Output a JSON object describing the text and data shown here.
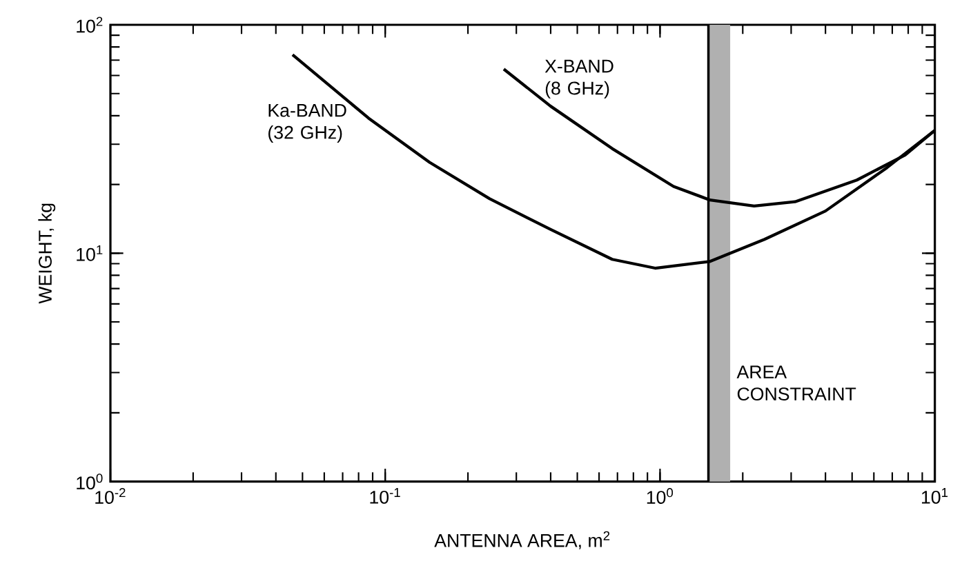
{
  "chart_data": {
    "type": "line",
    "xlabel": "ANTENNA AREA, m$^{2}$",
    "ylabel": "WEIGHT, kg",
    "log": "xy",
    "grid": false,
    "marker": "none",
    "line_style": "solid",
    "xlim": [
      0.01,
      10
    ],
    "ylim": [
      1,
      100
    ],
    "xticks": [
      {
        "value": 0.01,
        "label": "10$^{-2}$"
      },
      {
        "value": 0.1,
        "label": "10$^{-1}$"
      },
      {
        "value": 1,
        "label": "10$^{0}$"
      },
      {
        "value": 10,
        "label": "10$^{1}$"
      }
    ],
    "yticks": [
      {
        "value": 1,
        "label": "10$^{0}$"
      },
      {
        "value": 10,
        "label": "10$^{1}$"
      },
      {
        "value": 100,
        "label": "10$^{2}$"
      }
    ],
    "series": [
      {
        "name": "Ka-BAND (32 GHz)",
        "color": "#000000",
        "x": [
          0.046,
          0.087,
          0.145,
          0.24,
          0.4,
          0.67,
          0.96,
          1.52,
          2.4,
          4.0,
          6.7,
          10
        ],
        "values": [
          74,
          39,
          25,
          17.3,
          12.7,
          9.4,
          8.6,
          9.2,
          11.5,
          15.3,
          23.7,
          34.5
        ]
      },
      {
        "name": "X-BAND (8 GHz)",
        "color": "#000000",
        "x": [
          0.27,
          0.4,
          0.67,
          1.12,
          1.52,
          2.2,
          3.1,
          5.2,
          7.8,
          10
        ],
        "values": [
          64,
          44,
          28.7,
          19.6,
          17.1,
          16.1,
          16.8,
          20.9,
          26.9,
          34.5
        ]
      }
    ],
    "bands": [
      {
        "axis": "x",
        "from": 1.5,
        "to": 1.8,
        "label": "AREA CONSTRAINT",
        "color": "#b0b0b0"
      }
    ],
    "ref_lines": [
      {
        "axis": "x",
        "value": 1.5,
        "color": "#000000"
      }
    ]
  }
}
